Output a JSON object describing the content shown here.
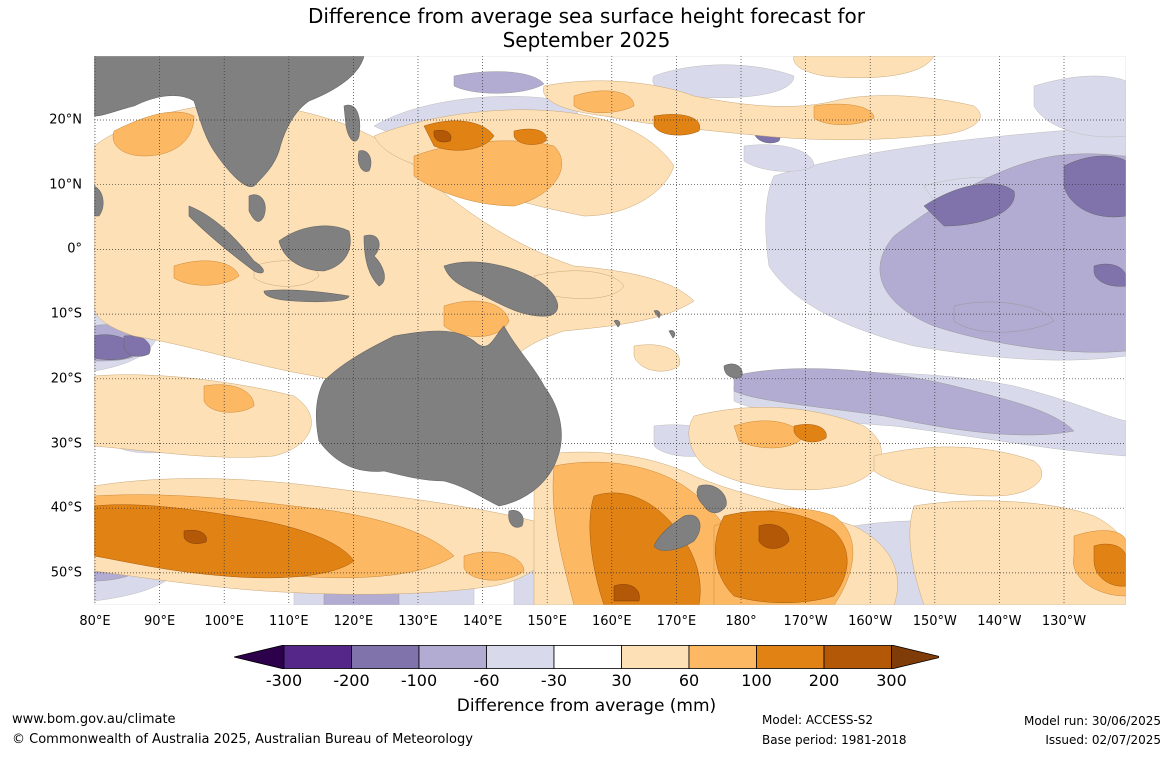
{
  "title": {
    "line1": "Difference from average sea surface height forecast for",
    "line2": "September 2025"
  },
  "lat_labels": [
    "20°N",
    "10°N",
    "0°",
    "10°S",
    "20°S",
    "30°S",
    "40°S",
    "50°S"
  ],
  "lon_labels": [
    "80°E",
    "90°E",
    "100°E",
    "110°E",
    "120°E",
    "130°E",
    "140°E",
    "150°E",
    "160°E",
    "170°E",
    "180°",
    "170°W",
    "160°W",
    "150°W",
    "140°W",
    "130°W"
  ],
  "colorbar": {
    "ticks": [
      "-300",
      "-200",
      "-100",
      "-60",
      "-30",
      "30",
      "60",
      "100",
      "200",
      "300"
    ],
    "colors": [
      "#2d004b",
      "#542788",
      "#8073ac",
      "#b2abd2",
      "#d8daeb",
      "#ffffff",
      "#fee0b6",
      "#fdb863",
      "#e08214",
      "#b35806",
      "#7f3b08"
    ],
    "label": "Difference from average (mm)"
  },
  "land_color": "#808080",
  "footer": {
    "url": "www.bom.gov.au/climate",
    "copyright": "© Commonwealth of Australia 2025, Australian Bureau of Meteorology",
    "model": "Model: ACCESS-S2",
    "base_period": "Base period: 1981-2018",
    "model_run": "Model run: 30/06/2025",
    "issued": "Issued: 02/07/2025"
  }
}
